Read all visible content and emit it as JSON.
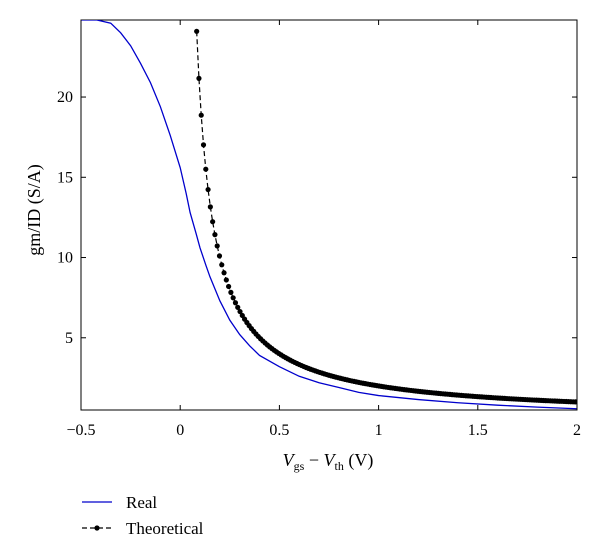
{
  "chart_data": {
    "type": "line",
    "title": "",
    "xlabel_parts": {
      "v1": "V",
      "sub1": "gs",
      "minus": " − ",
      "v2": "V",
      "sub2": "th",
      "unit": " (V)"
    },
    "ylabel": "gm/ID (S/A)",
    "xlim": [
      -0.5,
      2
    ],
    "ylim": [
      0.5,
      24.8
    ],
    "xticks": [
      -0.5,
      0,
      0.5,
      1,
      1.5,
      2
    ],
    "xtick_labels": [
      "−0.5",
      "0",
      "0.5",
      "1",
      "1.5",
      "2"
    ],
    "yticks": [
      5,
      10,
      15,
      20
    ],
    "ytick_labels": [
      "5",
      "10",
      "15",
      "20"
    ],
    "grid": false,
    "legend_position": "below-left",
    "series": [
      {
        "name": "Real",
        "color": "#0000cc",
        "style": "solid",
        "x": [
          -0.5,
          -0.42,
          -0.35,
          -0.3,
          -0.25,
          -0.2,
          -0.15,
          -0.1,
          -0.05,
          0,
          0.03,
          0.05,
          0.08,
          0.1,
          0.13,
          0.15,
          0.2,
          0.25,
          0.3,
          0.35,
          0.4,
          0.5,
          0.6,
          0.7,
          0.8,
          0.9,
          1.0,
          1.2,
          1.4,
          1.6,
          1.8,
          2.0
        ],
        "y": [
          24.8,
          24.8,
          24.6,
          24.0,
          23.2,
          22.1,
          20.9,
          19.4,
          17.6,
          15.6,
          14.0,
          12.8,
          11.5,
          10.6,
          9.5,
          8.8,
          7.3,
          6.1,
          5.2,
          4.5,
          3.9,
          3.2,
          2.6,
          2.2,
          1.9,
          1.6,
          1.4,
          1.15,
          0.95,
          0.8,
          0.68,
          0.58
        ]
      },
      {
        "name": "Theoretical",
        "color": "#000000",
        "style": "dashed-markers",
        "formula_x_start": 0.083,
        "formula_x_end": 2.0,
        "formula_x_step": 0.0115,
        "formula_numerator": 2
      }
    ]
  },
  "legend": {
    "items": [
      {
        "label": "Real",
        "color": "#0000cc"
      },
      {
        "label": "Theoretical",
        "color": "#000000"
      }
    ]
  }
}
